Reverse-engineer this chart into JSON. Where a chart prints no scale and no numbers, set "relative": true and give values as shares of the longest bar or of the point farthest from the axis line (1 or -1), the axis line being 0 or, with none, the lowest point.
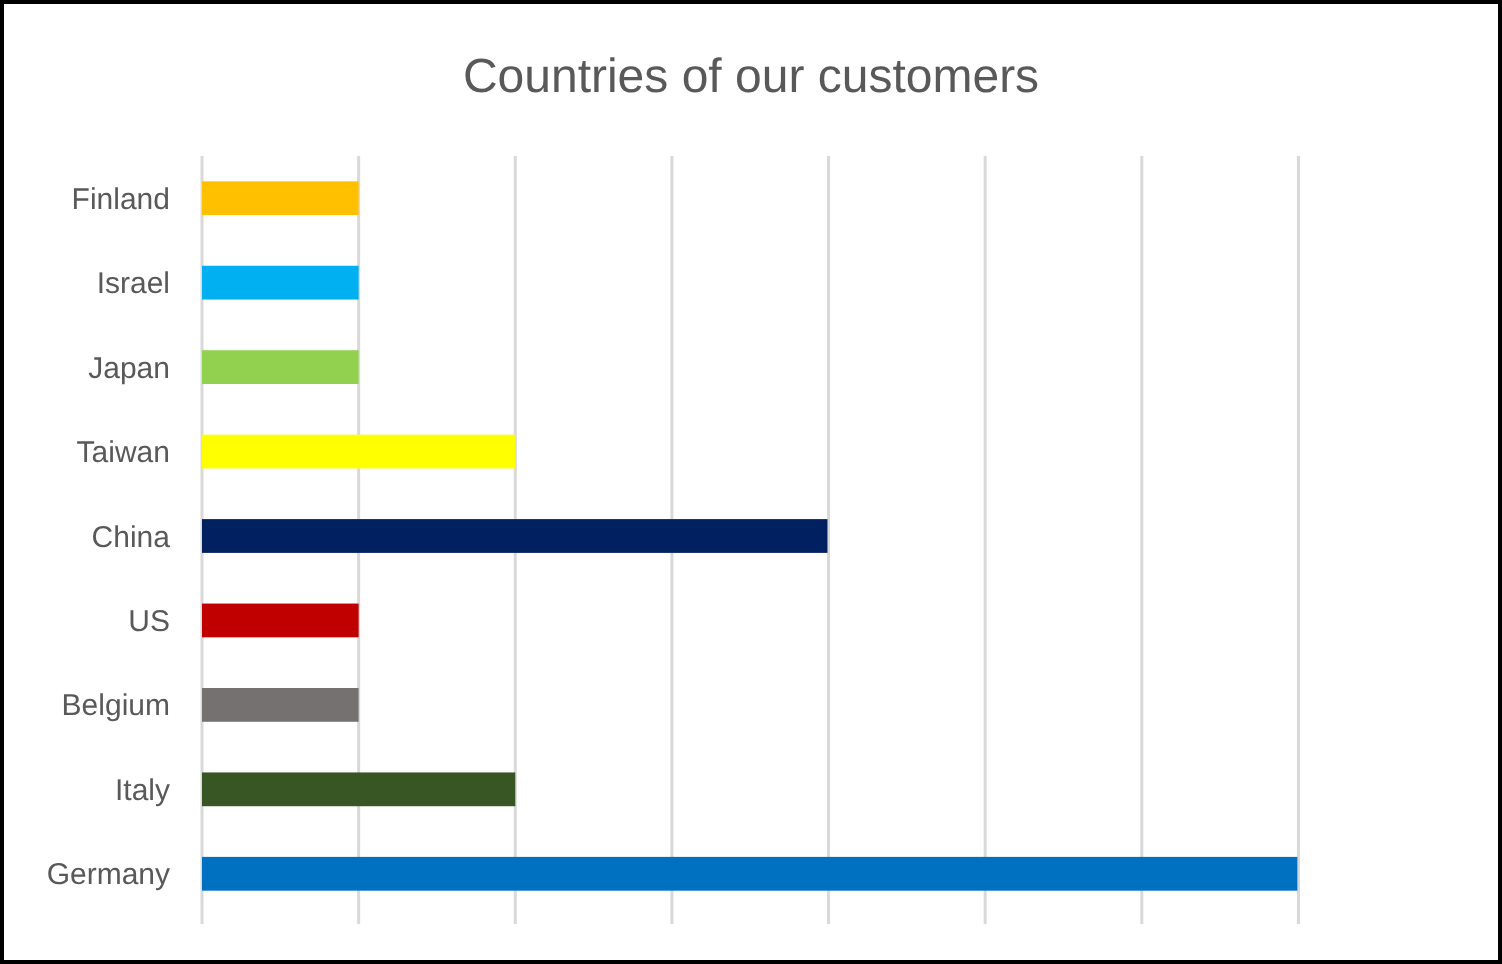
{
  "chart_data": {
    "type": "bar",
    "orientation": "horizontal",
    "relative": true,
    "title": "Countries of our customers",
    "categories": [
      "Finland",
      "Israel",
      "Japan",
      "Taiwan",
      "China",
      "US",
      "Belgium",
      "Italy",
      "Germany"
    ],
    "values": [
      0.143,
      0.143,
      0.143,
      0.286,
      0.571,
      0.143,
      0.143,
      0.286,
      1
    ],
    "colors": [
      "#ffc000",
      "#00b0f0",
      "#92d050",
      "#ffff00",
      "#002060",
      "#c00000",
      "#767171",
      "#375623",
      "#0070c0"
    ],
    "grid": "x"
  }
}
